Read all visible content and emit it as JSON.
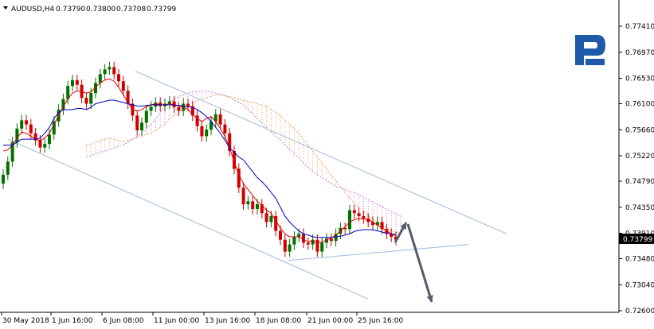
{
  "chart_data": {
    "type": "candlestick",
    "title": "AUDUSD,H4",
    "ohlc_header": [
      "0.73790",
      "0.73800",
      "0.73708",
      "0.73799"
    ],
    "last_price": "0.73799",
    "ylim": [
      0.726,
      0.778
    ],
    "y_ticks": [
      "0.77410",
      "0.76970",
      "0.76530",
      "0.76100",
      "0.75660",
      "0.75220",
      "0.74790",
      "0.74350",
      "0.73910",
      "0.73480",
      "0.73040",
      "0.72600"
    ],
    "x_ticks": [
      "30 May 2018",
      "1 Jun 16:00",
      "6 Jun 08:00",
      "11 Jun 00:00",
      "13 Jun 16:00",
      "18 Jun 08:00",
      "21 Jun 00:00",
      "25 Jun 16:00"
    ],
    "candles_close": [
      0.749,
      0.7512,
      0.7545,
      0.7568,
      0.7582,
      0.7575,
      0.756,
      0.7548,
      0.7536,
      0.7542,
      0.7558,
      0.758,
      0.76,
      0.7618,
      0.764,
      0.765,
      0.7642,
      0.762,
      0.761,
      0.7628,
      0.7645,
      0.766,
      0.7668,
      0.7672,
      0.766,
      0.7648,
      0.7632,
      0.761,
      0.759,
      0.7565,
      0.7578,
      0.7598,
      0.7605,
      0.7612,
      0.7606,
      0.761,
      0.7614,
      0.7604,
      0.7598,
      0.761,
      0.7606,
      0.759,
      0.7572,
      0.7555,
      0.7566,
      0.758,
      0.7592,
      0.7575,
      0.756,
      0.753,
      0.75,
      0.7468,
      0.744,
      0.7445,
      0.7432,
      0.744,
      0.7425,
      0.741,
      0.742,
      0.7395,
      0.738,
      0.736,
      0.7372,
      0.7385,
      0.739,
      0.7375,
      0.7372,
      0.738,
      0.736,
      0.7375,
      0.7382,
      0.7378,
      0.739,
      0.74,
      0.7398,
      0.743,
      0.7425,
      0.742,
      0.7416,
      0.741,
      0.7405,
      0.741,
      0.7398,
      0.739,
      0.7385,
      0.738
    ],
    "tenkan": [
      0.753,
      0.7532,
      0.754,
      0.7552,
      0.7562,
      0.756,
      0.7555,
      0.755,
      0.7548,
      0.7552,
      0.756,
      0.7575,
      0.759,
      0.7605,
      0.7618,
      0.7628,
      0.7632,
      0.763,
      0.7628,
      0.763,
      0.7638,
      0.7645,
      0.765,
      0.7652,
      0.7648,
      0.7638,
      0.7625,
      0.7612,
      0.76,
      0.7598,
      0.76,
      0.7605,
      0.7608,
      0.761,
      0.7608,
      0.7608,
      0.761,
      0.7608,
      0.7606,
      0.7604,
      0.76,
      0.7592,
      0.7585,
      0.758,
      0.7585,
      0.7588,
      0.758,
      0.7568,
      0.7555,
      0.7535,
      0.7512,
      0.749,
      0.7475,
      0.7465,
      0.7455,
      0.7445,
      0.7438,
      0.743,
      0.7425,
      0.7412,
      0.74,
      0.739,
      0.7385,
      0.7385,
      0.7385,
      0.738,
      0.7377,
      0.7378,
      0.7375,
      0.7376,
      0.738,
      0.7383,
      0.7388,
      0.7395,
      0.7402,
      0.741,
      0.7414,
      0.7416,
      0.7415,
      0.7414,
      0.741,
      0.7405,
      0.74,
      0.7395,
      0.739,
      0.7386
    ],
    "kijun": [
      0.754,
      0.754,
      0.754,
      0.7545,
      0.755,
      0.755,
      0.755,
      0.755,
      0.7552,
      0.756,
      0.757,
      0.7585,
      0.7595,
      0.76,
      0.76,
      0.76,
      0.7602,
      0.7602,
      0.76,
      0.7604,
      0.761,
      0.7612,
      0.7614,
      0.7616,
      0.7616,
      0.7614,
      0.7612,
      0.761,
      0.7608,
      0.7606,
      0.7606,
      0.7607,
      0.7608,
      0.7608,
      0.7608,
      0.7608,
      0.7608,
      0.7608,
      0.7607,
      0.7606,
      0.7605,
      0.7604,
      0.76,
      0.7595,
      0.7588,
      0.758,
      0.757,
      0.756,
      0.7548,
      0.7535,
      0.7528,
      0.752,
      0.7515,
      0.7505,
      0.7495,
      0.7485,
      0.7478,
      0.747,
      0.746,
      0.745,
      0.7435,
      0.742,
      0.741,
      0.7402,
      0.7395,
      0.739,
      0.7388,
      0.7385,
      0.7384,
      0.7384,
      0.7384,
      0.7384,
      0.7385,
      0.7386,
      0.7388,
      0.739,
      0.7394,
      0.7396,
      0.7397,
      0.7397,
      0.7397,
      0.7395,
      0.7393,
      0.7391,
      0.739,
      0.7389
    ],
    "ichimoku_cloud": {
      "start_index": 0,
      "span_a": [
        0.754,
        0.7542,
        0.7545,
        0.7548,
        0.755,
        0.7552,
        0.755,
        0.7548,
        0.7546,
        0.7548,
        0.755,
        0.7553,
        0.7555,
        0.7558,
        0.756,
        0.7565,
        0.757,
        0.7575,
        0.7585,
        0.759,
        0.7595,
        0.76,
        0.7605,
        0.761,
        0.7615,
        0.7618,
        0.762,
        0.7622,
        0.7625,
        0.7625,
        0.7624,
        0.7622,
        0.762,
        0.7618,
        0.7616,
        0.7614,
        0.7612,
        0.761,
        0.7608,
        0.7606,
        0.76,
        0.7595,
        0.759,
        0.7582,
        0.7575,
        0.7568,
        0.756,
        0.755,
        0.754,
        0.753,
        0.752,
        0.751,
        0.75,
        0.749,
        0.748,
        0.747,
        0.746,
        0.745,
        0.7442,
        0.7435,
        0.7428,
        0.742,
        0.7415,
        0.741,
        0.7405,
        0.74,
        0.7396,
        0.7393,
        0.739
      ],
      "span_b": [
        0.752,
        0.7522,
        0.7525,
        0.7528,
        0.753,
        0.7532,
        0.7535,
        0.7538,
        0.754,
        0.7545,
        0.755,
        0.7555,
        0.756,
        0.7568,
        0.7575,
        0.7585,
        0.7595,
        0.7605,
        0.7612,
        0.7618,
        0.7622,
        0.7625,
        0.7628,
        0.763,
        0.763,
        0.7632,
        0.7632,
        0.763,
        0.7628,
        0.7626,
        0.7624,
        0.762,
        0.7616,
        0.7612,
        0.7608,
        0.76,
        0.7592,
        0.7585,
        0.7578,
        0.757,
        0.7562,
        0.7555,
        0.7548,
        0.754,
        0.7532,
        0.7525,
        0.7518,
        0.751,
        0.7502,
        0.7495,
        0.749,
        0.7485,
        0.748,
        0.7475,
        0.747,
        0.7468,
        0.7465,
        0.7462,
        0.746,
        0.7456,
        0.7452,
        0.7448,
        0.7444,
        0.744,
        0.7436,
        0.7432,
        0.7428,
        0.7424,
        0.742
      ]
    },
    "channel_upper": [
      [
        0.7665,
        0.755
      ],
      [
        0.755,
        0.739
      ]
    ],
    "channel_lower": [
      [
        0.755,
        0.728
      ],
      [
        0.728,
        0.73
      ]
    ],
    "arrows": [
      {
        "from_price": 0.7375,
        "to_price": 0.7395,
        "direction": "up"
      },
      {
        "from_price": 0.737,
        "to_price": 0.7268,
        "direction": "down"
      }
    ],
    "colors": {
      "bull": "#007000",
      "bear": "#d00000",
      "tenkan": "#e00000",
      "kijun": "#0000c0",
      "cloud_bull": "#f0a060",
      "cloud_bear": "#c080d0",
      "channel": "#b0c4de",
      "arrow": "#555c68",
      "grid_axis": "#000000",
      "logo": "#1f5aa8"
    }
  }
}
